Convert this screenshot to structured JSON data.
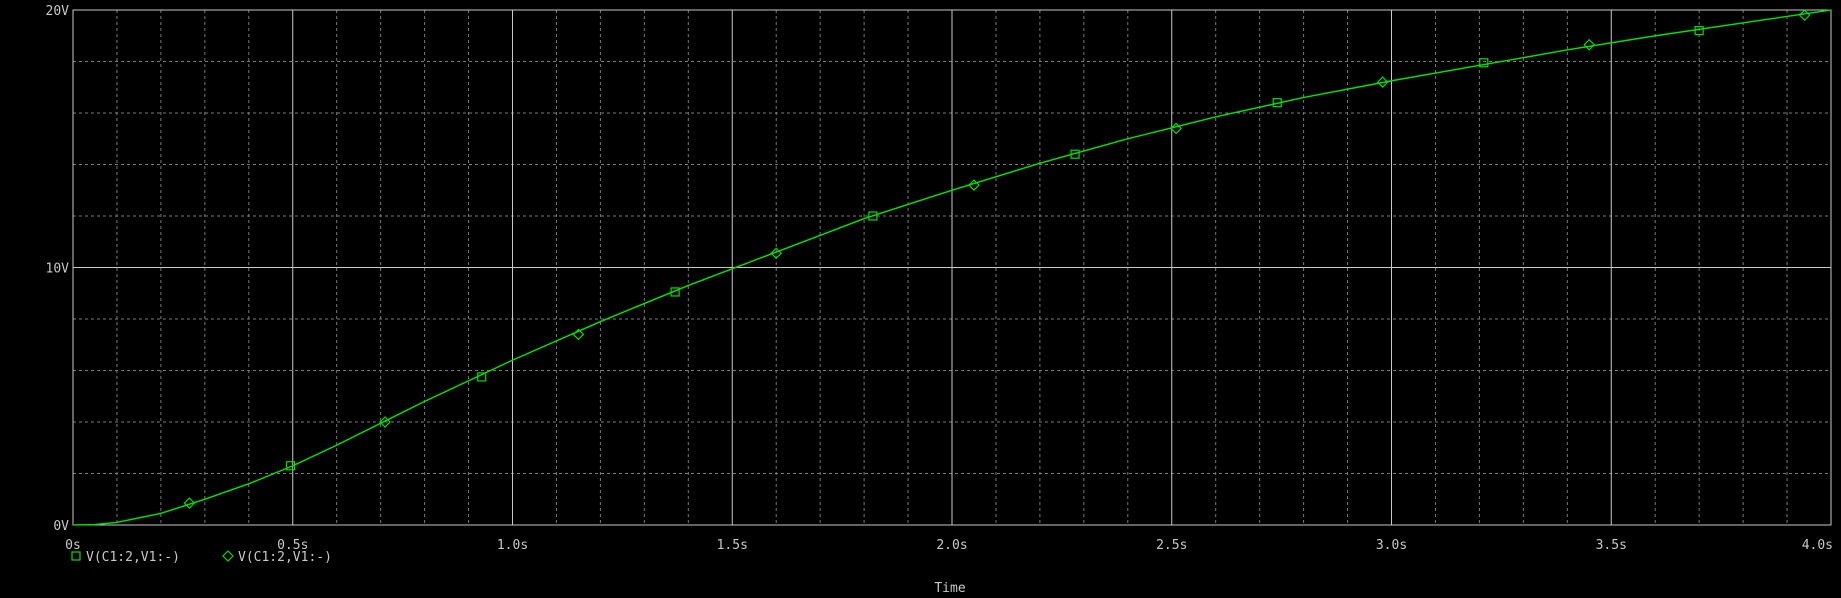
{
  "chart_data": {
    "type": "line",
    "title": "",
    "xlabel": "Time",
    "ylabel": "",
    "xlim": [
      0,
      4.0
    ],
    "ylim": [
      0,
      20
    ],
    "grid": true,
    "x_tick_values": [
      0,
      0.5,
      1.0,
      1.5,
      2.0,
      2.5,
      3.0,
      3.5,
      4.0
    ],
    "x_tick_labels": [
      "0s",
      "0.5s",
      "1.0s",
      "1.5s",
      "2.0s",
      "2.5s",
      "3.0s",
      "3.5s",
      "4.0s"
    ],
    "y_tick_values": [
      0,
      10,
      20
    ],
    "y_tick_labels": [
      "0V",
      "10V",
      "20V"
    ],
    "legend_position": "bottom-left",
    "series": [
      {
        "name": "V(C1:2,V1:-)",
        "marker": "square",
        "color": "#00e000",
        "x": [
          0,
          0.05,
          0.1,
          0.2,
          0.3,
          0.4,
          0.5,
          0.6,
          0.7,
          0.8,
          0.9,
          1.0,
          1.2,
          1.4,
          1.6,
          1.8,
          2.0,
          2.2,
          2.4,
          2.6,
          2.8,
          3.0,
          3.2,
          3.4,
          3.6,
          3.8,
          4.0
        ],
        "y": [
          0,
          0.02,
          0.1,
          0.45,
          1.0,
          1.6,
          2.3,
          3.1,
          3.95,
          4.8,
          5.6,
          6.4,
          7.9,
          9.3,
          10.6,
          11.9,
          13.0,
          14.05,
          15.0,
          15.85,
          16.6,
          17.25,
          17.85,
          18.45,
          19.0,
          19.5,
          20.0
        ],
        "marker_x": [
          0.495,
          0.93,
          1.37,
          1.82,
          2.28,
          2.74,
          3.21,
          3.7
        ],
        "marker_y": [
          2.3,
          5.75,
          9.05,
          12.0,
          14.4,
          16.4,
          17.95,
          19.2
        ]
      },
      {
        "name": "V(C1:2,V1:-)",
        "marker": "diamond",
        "color": "#00e000",
        "x": [
          0,
          0.05,
          0.1,
          0.2,
          0.3,
          0.4,
          0.5,
          0.6,
          0.7,
          0.8,
          0.9,
          1.0,
          1.2,
          1.4,
          1.6,
          1.8,
          2.0,
          2.2,
          2.4,
          2.6,
          2.8,
          3.0,
          3.2,
          3.4,
          3.6,
          3.8,
          4.0
        ],
        "y": [
          0,
          0.02,
          0.1,
          0.45,
          1.0,
          1.6,
          2.3,
          3.1,
          3.95,
          4.8,
          5.6,
          6.4,
          7.9,
          9.3,
          10.6,
          11.9,
          13.0,
          14.05,
          15.0,
          15.85,
          16.6,
          17.25,
          17.85,
          18.45,
          19.0,
          19.5,
          20.0
        ],
        "marker_x": [
          0.265,
          0.71,
          1.15,
          1.6,
          2.05,
          2.51,
          2.98,
          3.45,
          3.94
        ],
        "marker_y": [
          0.85,
          4.0,
          7.4,
          10.55,
          13.2,
          15.4,
          17.2,
          18.65,
          19.8
        ]
      }
    ]
  },
  "colors": {
    "background": "#000000",
    "grid_major": "#c8c8c8",
    "grid_minor": "#7a7a7a",
    "axis_text": "#c8c8c8",
    "trace": "#00e000"
  }
}
